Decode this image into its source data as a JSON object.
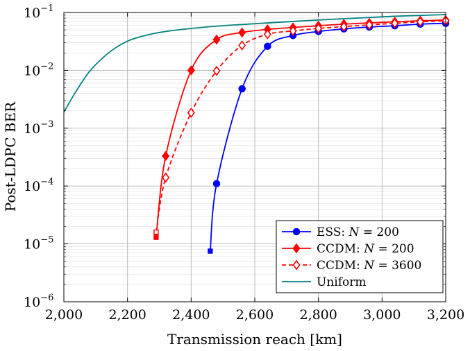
{
  "chart_data": {
    "type": "line",
    "title": "",
    "xlabel": "Transmission reach [km]",
    "ylabel": "Post-LDPC BER",
    "xlim": [
      2000,
      3200
    ],
    "ylim": [
      1e-06,
      0.1
    ],
    "yscale": "log",
    "grid": true,
    "legend_position": "bottom-right",
    "x_ticks": [
      {
        "value": 2000,
        "label": "2,000"
      },
      {
        "value": 2200,
        "label": "2,200"
      },
      {
        "value": 2400,
        "label": "2,400"
      },
      {
        "value": 2600,
        "label": "2,600"
      },
      {
        "value": 2800,
        "label": "2,800"
      },
      {
        "value": 3000,
        "label": "3,000"
      },
      {
        "value": 3200,
        "label": "3,200"
      }
    ],
    "y_ticks": [
      {
        "value": 1e-06,
        "base": "10",
        "exp": "−6"
      },
      {
        "value": 1e-05,
        "base": "10",
        "exp": "−5"
      },
      {
        "value": 0.0001,
        "base": "10",
        "exp": "−4"
      },
      {
        "value": 0.001,
        "base": "10",
        "exp": "−3"
      },
      {
        "value": 0.01,
        "base": "10",
        "exp": "−2"
      },
      {
        "value": 0.1,
        "base": "10",
        "exp": "−1"
      }
    ],
    "series": [
      {
        "name": "ESS: N = 200",
        "legend_prefix": "ESS: ",
        "legend_var": "N",
        "legend_suffix": " = 200",
        "color": "#0000ff",
        "dash": false,
        "marker": "circle",
        "marker_fill": true,
        "x": [
          2480,
          2560,
          2640,
          2720,
          2800,
          2880,
          2960,
          3040,
          3120,
          3200
        ],
        "y": [
          0.00011,
          0.0048,
          0.026,
          0.04,
          0.047,
          0.052,
          0.056,
          0.059,
          0.063,
          0.065
        ],
        "lead_in": {
          "x": 2460,
          "y": 7.5e-06
        }
      },
      {
        "name": "CCDM: N = 200",
        "legend_prefix": "CCDM: ",
        "legend_var": "N",
        "legend_suffix": " = 200",
        "color": "#ff0000",
        "dash": false,
        "marker": "diamond",
        "marker_fill": true,
        "x": [
          2320,
          2400,
          2480,
          2560,
          2640,
          2720,
          2800,
          2880,
          2960,
          3040,
          3120,
          3200
        ],
        "y": [
          0.00033,
          0.01,
          0.034,
          0.045,
          0.051,
          0.055,
          0.059,
          0.063,
          0.066,
          0.069,
          0.072,
          0.074
        ],
        "lead_in": {
          "x": 2290,
          "y": 1.3e-05
        }
      },
      {
        "name": "CCDM: N = 3600",
        "legend_prefix": "CCDM: ",
        "legend_var": "N",
        "legend_suffix": " = 3600",
        "color": "#ff0000",
        "dash": true,
        "marker": "diamond",
        "marker_fill": false,
        "x": [
          2320,
          2400,
          2480,
          2560,
          2640,
          2720,
          2800,
          2880,
          2960,
          3040,
          3120,
          3200
        ],
        "y": [
          0.00014,
          0.00185,
          0.0098,
          0.027,
          0.042,
          0.048,
          0.053,
          0.057,
          0.061,
          0.065,
          0.069,
          0.072
        ],
        "lead_in": {
          "x": 2290,
          "y": 1.6e-05
        }
      },
      {
        "name": "Uniform",
        "legend_prefix": "Uniform",
        "legend_var": "",
        "legend_suffix": "",
        "color": "#008080",
        "dash": false,
        "marker": "none",
        "marker_fill": false,
        "x": [
          2000,
          2040,
          2080,
          2120,
          2160,
          2200,
          2240,
          2280,
          2320,
          2400,
          2480,
          2560,
          2640,
          2720,
          2800,
          2880,
          2960,
          3040,
          3120,
          3200
        ],
        "y": [
          0.0019,
          0.0045,
          0.0095,
          0.016,
          0.024,
          0.032,
          0.038,
          0.043,
          0.047,
          0.053,
          0.058,
          0.062,
          0.066,
          0.07,
          0.074,
          0.078,
          0.082,
          0.086,
          0.089,
          0.092
        ]
      }
    ]
  }
}
